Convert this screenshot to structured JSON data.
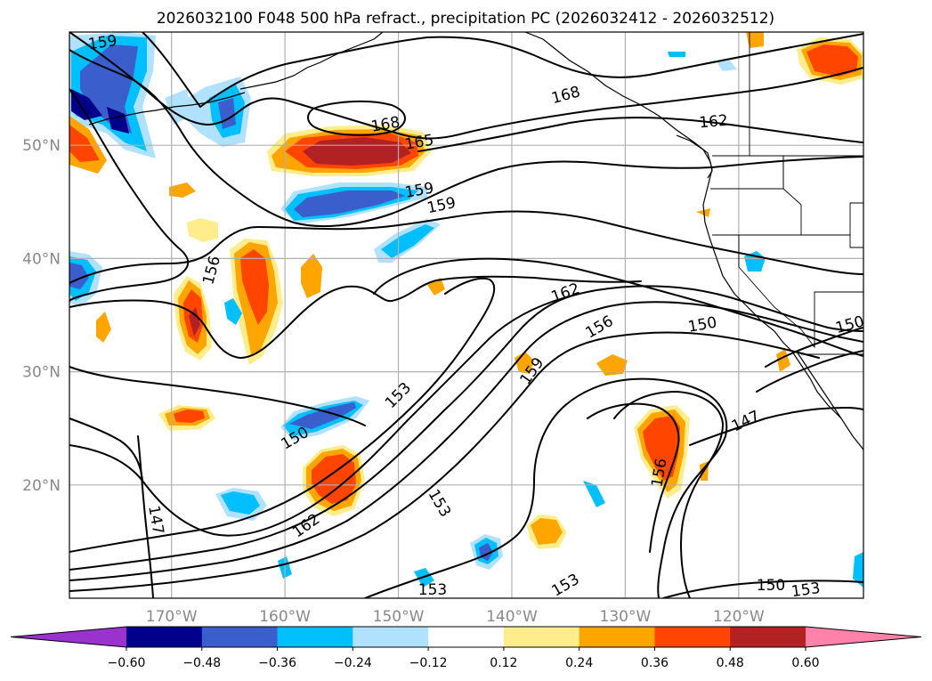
{
  "chart_data": {
    "type": "heatmap",
    "title": "2026032100 F048 500 hPa refract., precipitation PC (2026032412 - 2026032512)",
    "x_ticks": [
      "170°W",
      "160°W",
      "150°W",
      "140°W",
      "130°W",
      "120°W"
    ],
    "x_tick_values": [
      -170,
      -160,
      -150,
      -140,
      -130,
      -120
    ],
    "y_ticks": [
      "50°N",
      "40°N",
      "30°N",
      "20°N"
    ],
    "y_tick_values": [
      50,
      40,
      30,
      20
    ],
    "xlim": [
      -179,
      -109
    ],
    "ylim": [
      10,
      60
    ],
    "grid": true,
    "colorbar": {
      "levels": [
        -0.6,
        -0.48,
        -0.36,
        -0.24,
        -0.12,
        0.12,
        0.24,
        0.36,
        0.48,
        0.6
      ],
      "labels": [
        "−0.60",
        "−0.48",
        "−0.36",
        "−0.24",
        "−0.12",
        "0.12",
        "0.24",
        "0.36",
        "0.48",
        "0.60"
      ],
      "colors": [
        "#9a32cd",
        "#00008b",
        "#3a5fcd",
        "#00bfff",
        "#b0e2ff",
        "#ffffff",
        "#ffec8b",
        "#ffa500",
        "#ff4500",
        "#b22222",
        "#ff82ab"
      ],
      "extend": "both",
      "orientation": "horizontal"
    },
    "contour_labels": [
      "159",
      "168",
      "165",
      "168",
      "162",
      "159",
      "159",
      "156",
      "162",
      "150",
      "156",
      "150",
      "159",
      "153",
      "150",
      "147",
      "156",
      "162",
      "153",
      "147",
      "153",
      "153",
      "150",
      "153"
    ]
  }
}
